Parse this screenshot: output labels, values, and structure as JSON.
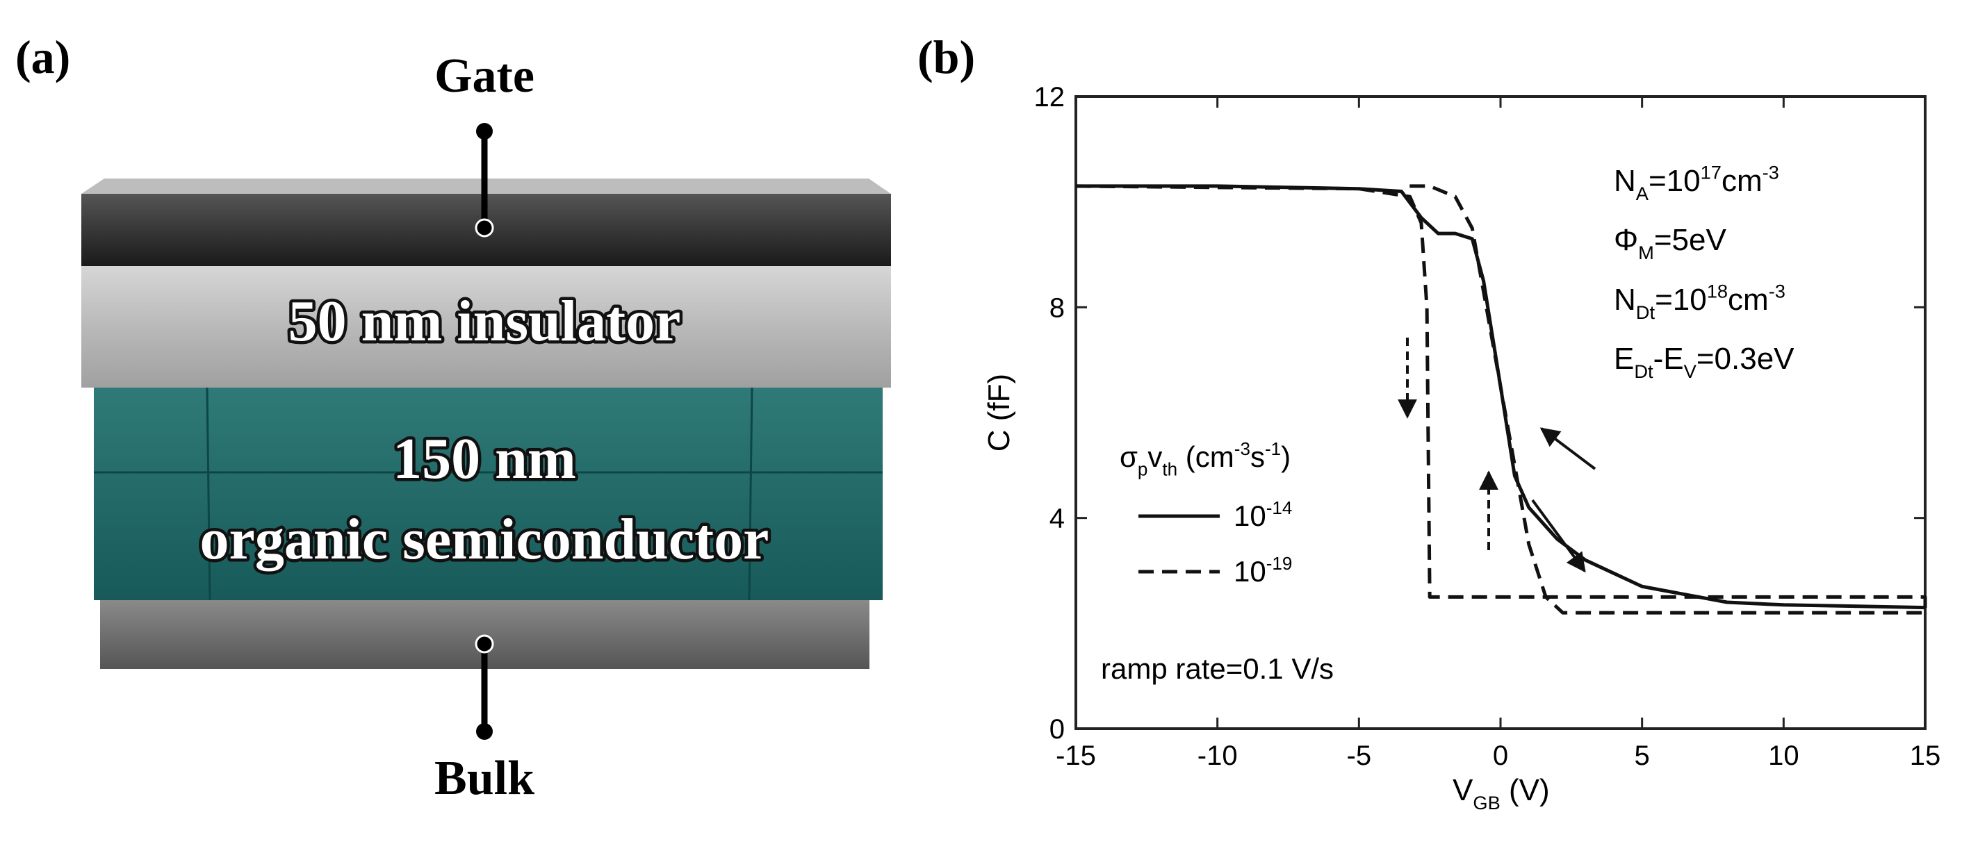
{
  "panel_a": {
    "label": "(a)",
    "gate": "Gate",
    "insulator": "50 nm insulator",
    "semiconductor_1": "150 nm",
    "semiconductor_2": "organic semiconductor",
    "bulk": "Bulk"
  },
  "panel_b": {
    "label": "(b)"
  },
  "chart_data": {
    "type": "line",
    "x_label": [
      {
        "t": "V"
      },
      {
        "sub": "GB"
      },
      {
        "t": " (V)"
      }
    ],
    "y_label": "C (fF)",
    "xlim": [
      -15,
      15
    ],
    "xticks": [
      -15,
      -10,
      -5,
      0,
      5,
      10,
      15
    ],
    "ylim": [
      0,
      12
    ],
    "yticks": [
      0,
      4,
      8,
      12
    ],
    "annotations": [
      [
        {
          "t": "N"
        },
        {
          "sub": "A"
        },
        {
          "t": "=10"
        },
        {
          "sup": "17"
        },
        {
          "t": "cm"
        },
        {
          "sup": "-3"
        }
      ],
      [
        {
          "t": "Φ"
        },
        {
          "sub": "M"
        },
        {
          "t": "=5eV"
        }
      ],
      [
        {
          "t": "N"
        },
        {
          "sub": "Dt"
        },
        {
          "t": "=10"
        },
        {
          "sup": "18"
        },
        {
          "t": "cm"
        },
        {
          "sup": "-3"
        }
      ],
      [
        {
          "t": "E"
        },
        {
          "sub": "Dt"
        },
        {
          "t": "-E"
        },
        {
          "sub": "V"
        },
        {
          "t": "=0.3eV"
        }
      ]
    ],
    "legend_title": [
      {
        "t": "σ"
      },
      {
        "sub": "p"
      },
      {
        "t": "v"
      },
      {
        "sub": "th"
      },
      {
        "t": " (cm"
      },
      {
        "sup": "-3"
      },
      {
        "t": "s"
      },
      {
        "sup": "-1"
      },
      {
        "t": ")"
      }
    ],
    "ramp_note": "ramp rate=0.1 V/s",
    "series": [
      {
        "name": "10",
        "name_sup": "-14",
        "color": "#111111",
        "dash": false,
        "x": [
          -15,
          -10,
          -5,
          -3.5,
          -2.8,
          -2.2,
          -1.6,
          -1.0,
          -0.6,
          -0.3,
          0,
          0.5,
          1,
          2,
          3,
          5,
          8,
          10,
          15
        ],
        "values": [
          10.3,
          10.3,
          10.25,
          10.2,
          9.7,
          9.4,
          9.4,
          9.3,
          8.5,
          7.5,
          6.5,
          4.8,
          4.2,
          3.6,
          3.2,
          2.7,
          2.4,
          2.35,
          2.3
        ]
      },
      {
        "name": "10",
        "name_sup": "-19",
        "color": "#111111",
        "dash": true,
        "x": [
          -15,
          -5,
          -3.2,
          -2.8,
          -2.6,
          -2.5,
          0,
          10,
          15,
          15,
          10,
          2.2,
          1.6,
          1.0,
          0.5,
          0,
          -0.5,
          -1.0,
          -1.6,
          -2.5,
          -3.5
        ],
        "values": [
          10.3,
          10.25,
          10.1,
          9.6,
          8.0,
          2.5,
          2.5,
          2.5,
          2.5,
          2.2,
          2.2,
          2.2,
          2.5,
          3.5,
          5.0,
          6.5,
          8.0,
          9.5,
          10.1,
          10.3,
          10.3
        ]
      }
    ]
  }
}
